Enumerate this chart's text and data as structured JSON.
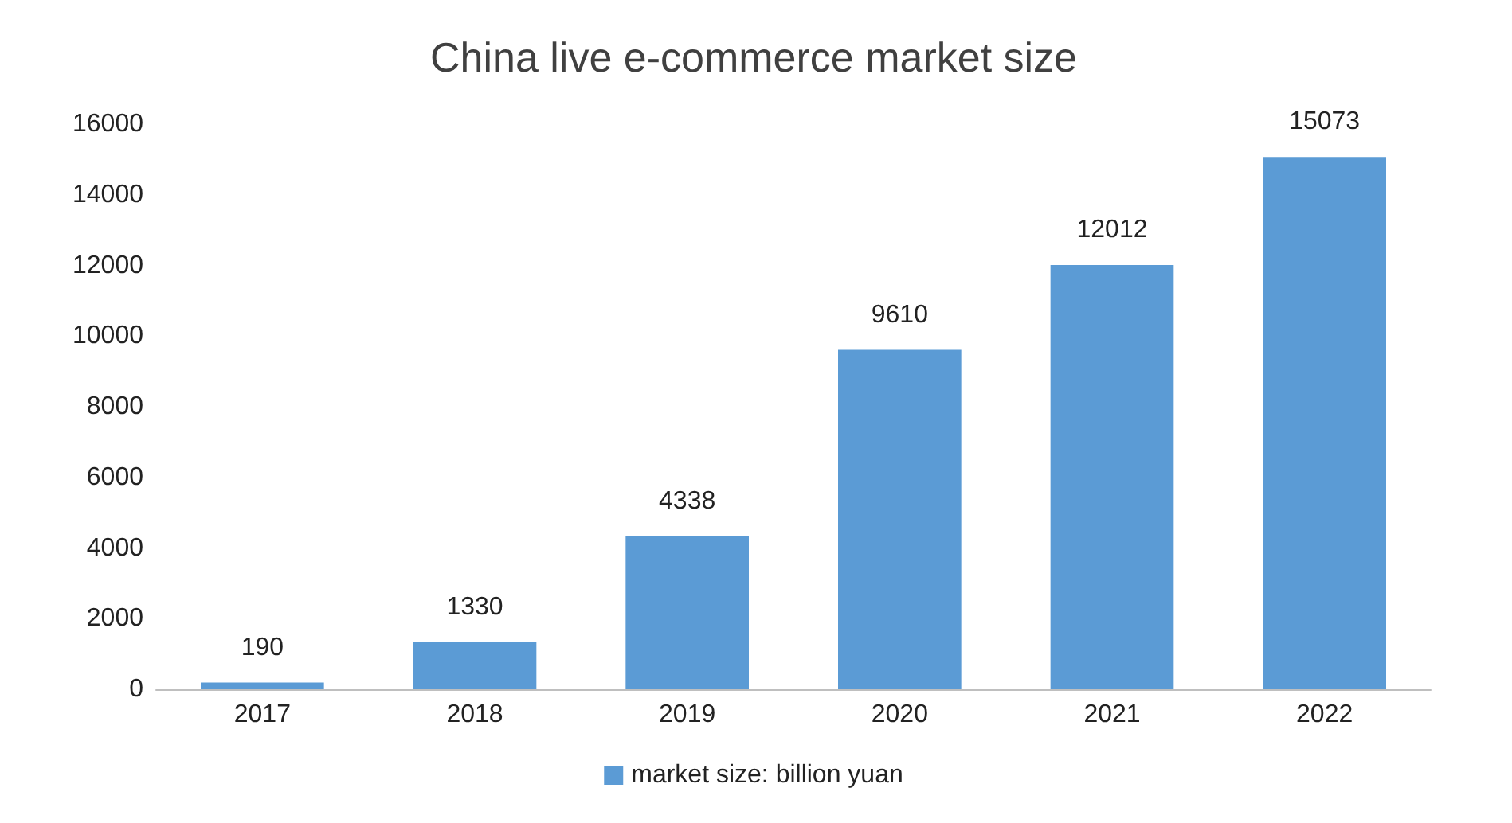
{
  "chart_data": {
    "type": "bar",
    "title": "China live e-commerce market size",
    "categories": [
      "2017",
      "2018",
      "2019",
      "2020",
      "2021",
      "2022"
    ],
    "series": [
      {
        "name": "market size: billion yuan",
        "color": "#5b9bd5",
        "values": [
          190,
          1330,
          4338,
          9610,
          12012,
          15073
        ]
      }
    ],
    "ylim": [
      0,
      16000
    ],
    "yticks": [
      0,
      2000,
      4000,
      6000,
      8000,
      10000,
      12000,
      14000,
      16000
    ],
    "data_labels": true,
    "grid": false,
    "legend": "bottom"
  }
}
